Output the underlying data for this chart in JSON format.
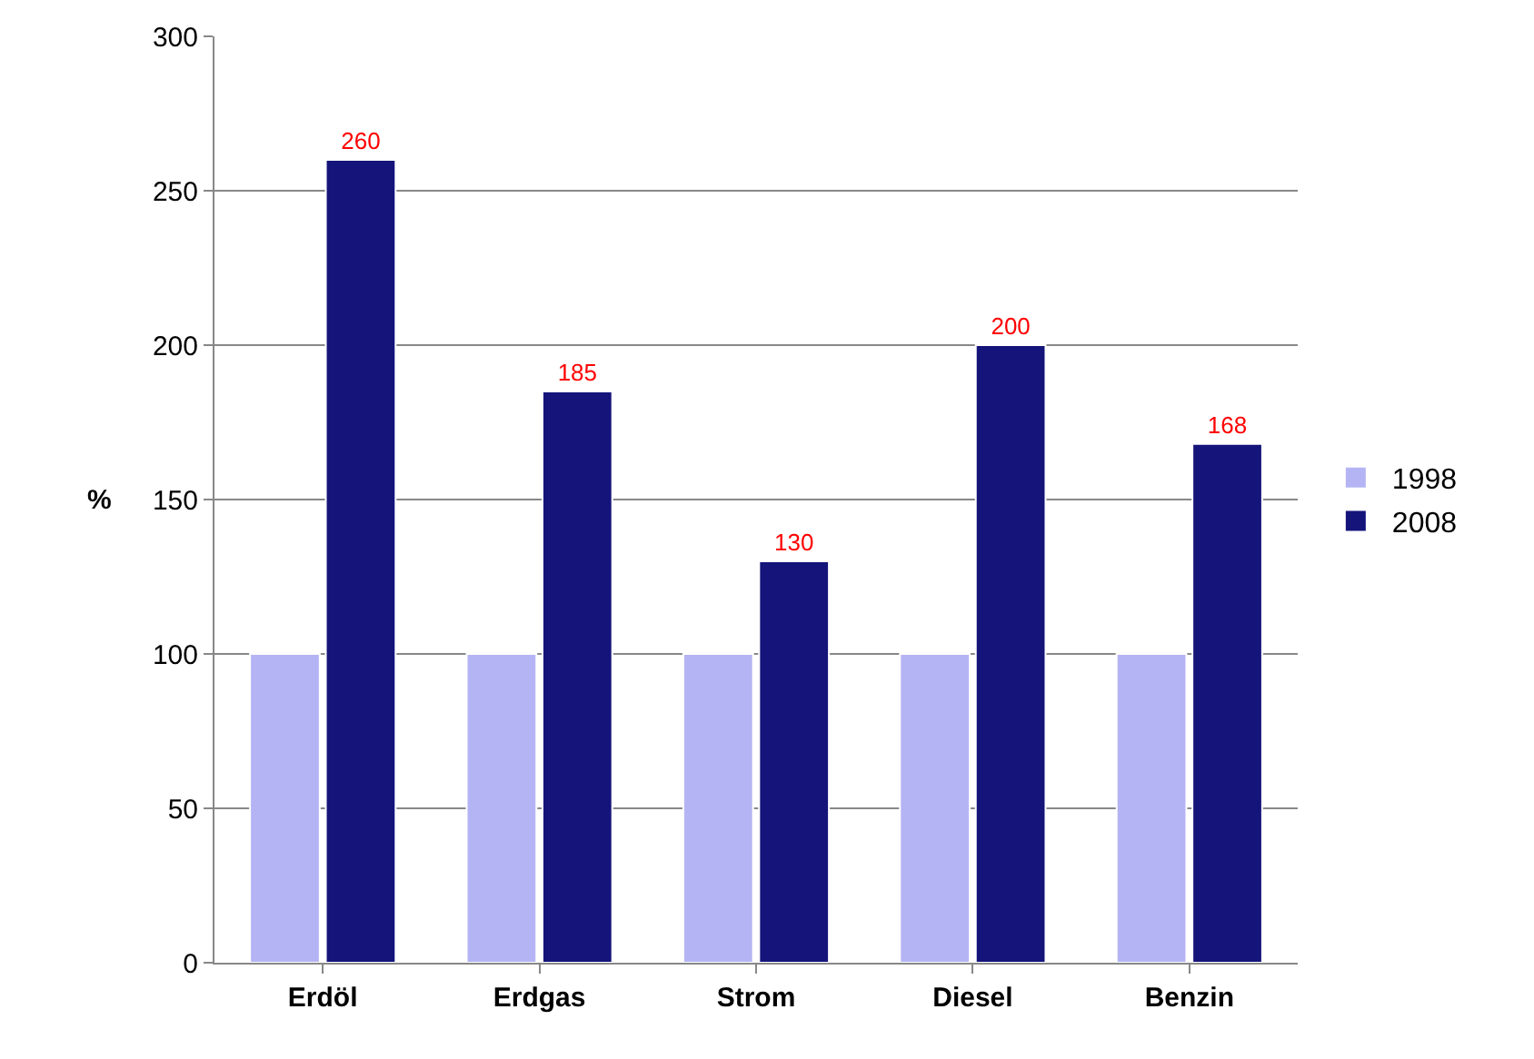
{
  "chart_data": {
    "type": "bar",
    "ylabel": "%",
    "categories": [
      "Erdöl",
      "Erdgas",
      "Strom",
      "Diesel",
      "Benzin"
    ],
    "series": [
      {
        "name": "1998",
        "color": "#b4b4f4",
        "values": [
          100,
          100,
          100,
          100,
          100
        ]
      },
      {
        "name": "2008",
        "color": "#14147a",
        "values": [
          260,
          185,
          130,
          200,
          168
        ],
        "value_labels": [
          "260",
          "185",
          "130",
          "200",
          "168"
        ]
      }
    ],
    "ylim": [
      0,
      300
    ],
    "yticks": [
      0,
      50,
      100,
      150,
      200,
      250,
      300
    ],
    "grid": "y",
    "legend": "right"
  }
}
